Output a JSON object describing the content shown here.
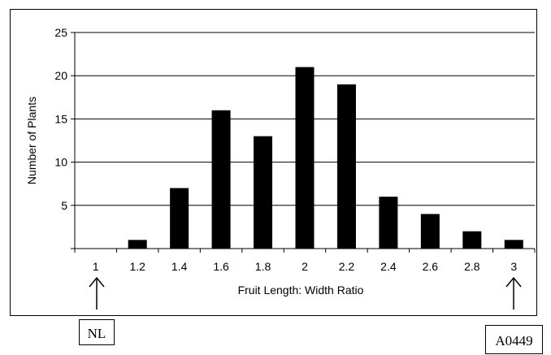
{
  "chart_data": {
    "type": "bar",
    "title": "",
    "xlabel": "Fruit Length: Width Ratio",
    "ylabel": "Number of Plants",
    "categories": [
      "1",
      "1.2",
      "1.4",
      "1.6",
      "1.8",
      "2",
      "2.2",
      "2.4",
      "2.6",
      "2.8",
      "3"
    ],
    "values": [
      0,
      1,
      7,
      16,
      13,
      21,
      19,
      6,
      4,
      2,
      1
    ],
    "ylim": [
      0,
      25
    ],
    "yticks": [
      "5",
      "10",
      "15",
      "20",
      "25"
    ],
    "grid": true,
    "legend": "none",
    "bar_color": "#000000",
    "annotations": {
      "left_parent": "NL",
      "right_parent": "A0449"
    }
  }
}
